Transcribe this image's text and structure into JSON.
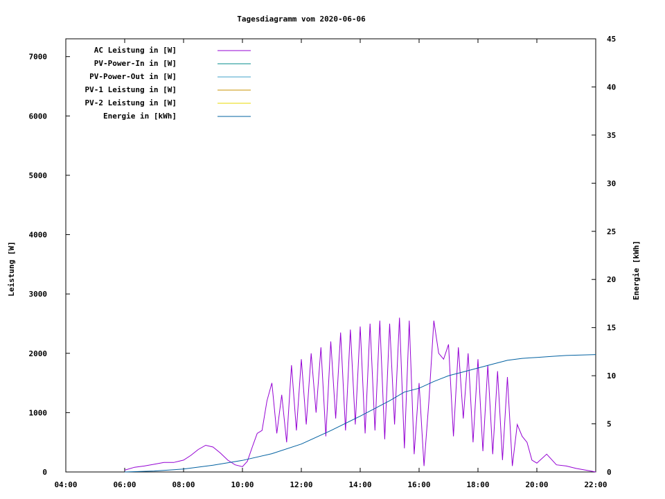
{
  "chart_data": {
    "type": "line",
    "title": "Tagesdiagramm vom 2020-06-06",
    "ylabel": "Leistung [W]",
    "y2label": "Energie [kWh]",
    "xlim": [
      "04:00",
      "22:00"
    ],
    "ylim": [
      0,
      7300
    ],
    "y2lim": [
      0,
      45
    ],
    "x_ticks": [
      "04:00",
      "06:00",
      "08:00",
      "10:00",
      "12:00",
      "14:00",
      "16:00",
      "18:00",
      "20:00",
      "22:00"
    ],
    "y_ticks": [
      0,
      1000,
      2000,
      3000,
      4000,
      5000,
      6000,
      7000
    ],
    "y2_ticks": [
      0,
      5,
      10,
      15,
      20,
      25,
      30,
      35,
      40,
      45
    ],
    "legend_position": "top-left",
    "series": [
      {
        "name": "AC Leistung in [W]",
        "color": "#9400d3",
        "axis": "left",
        "x": [
          "06:00",
          "06:20",
          "06:40",
          "07:00",
          "07:20",
          "07:40",
          "08:00",
          "08:15",
          "08:30",
          "08:45",
          "09:00",
          "09:15",
          "09:30",
          "09:45",
          "10:00",
          "10:10",
          "10:20",
          "10:30",
          "10:40",
          "10:50",
          "11:00",
          "11:10",
          "11:20",
          "11:30",
          "11:40",
          "11:50",
          "12:00",
          "12:10",
          "12:20",
          "12:30",
          "12:40",
          "12:50",
          "13:00",
          "13:10",
          "13:20",
          "13:30",
          "13:40",
          "13:50",
          "14:00",
          "14:10",
          "14:20",
          "14:30",
          "14:40",
          "14:50",
          "15:00",
          "15:10",
          "15:20",
          "15:30",
          "15:40",
          "15:50",
          "16:00",
          "16:10",
          "16:20",
          "16:30",
          "16:40",
          "16:50",
          "17:00",
          "17:10",
          "17:20",
          "17:30",
          "17:40",
          "17:50",
          "18:00",
          "18:10",
          "18:20",
          "18:30",
          "18:40",
          "18:50",
          "19:00",
          "19:10",
          "19:20",
          "19:30",
          "19:40",
          "19:50",
          "20:00",
          "20:20",
          "20:40",
          "21:00",
          "21:20",
          "21:40",
          "22:00"
        ],
        "values": [
          30,
          80,
          100,
          130,
          160,
          160,
          200,
          280,
          380,
          450,
          420,
          320,
          200,
          120,
          90,
          180,
          420,
          650,
          700,
          1200,
          1500,
          650,
          1300,
          500,
          1800,
          700,
          1900,
          800,
          2000,
          1000,
          2100,
          600,
          2200,
          900,
          2350,
          700,
          2400,
          800,
          2450,
          650,
          2500,
          700,
          2550,
          550,
          2500,
          800,
          2600,
          400,
          2550,
          300,
          1500,
          100,
          1200,
          2550,
          2000,
          1900,
          2150,
          600,
          2100,
          900,
          2000,
          500,
          1900,
          350,
          1800,
          300,
          1700,
          200,
          1600,
          100,
          800,
          600,
          500,
          200,
          150,
          300,
          120,
          100,
          60,
          30,
          0
        ]
      },
      {
        "name": "PV-Power-In in [W]",
        "color": "#008b8b",
        "axis": "left",
        "x": [],
        "values": []
      },
      {
        "name": "PV-Power-Out in [W]",
        "color": "#3fa0c8",
        "axis": "left",
        "x": [],
        "values": []
      },
      {
        "name": "PV-1 Leistung in [W]",
        "color": "#c89000",
        "axis": "left",
        "x": [],
        "values": []
      },
      {
        "name": "PV-2 Leistung in [W]",
        "color": "#e8d800",
        "axis": "left",
        "x": [],
        "values": []
      },
      {
        "name": "Energie in [kWh]",
        "color": "#0060a0",
        "axis": "right",
        "x": [
          "06:00",
          "07:00",
          "08:00",
          "09:00",
          "10:00",
          "11:00",
          "12:00",
          "13:00",
          "14:00",
          "15:00",
          "15:30",
          "16:00",
          "16:30",
          "17:00",
          "17:30",
          "18:00",
          "18:30",
          "19:00",
          "19:30",
          "20:00",
          "20:30",
          "21:00",
          "22:00"
        ],
        "values": [
          0,
          0.1,
          0.3,
          0.7,
          1.2,
          1.9,
          2.9,
          4.3,
          5.8,
          7.4,
          8.3,
          8.7,
          9.4,
          10.0,
          10.4,
          10.8,
          11.2,
          11.6,
          11.8,
          11.9,
          12.0,
          12.1,
          12.2
        ]
      }
    ]
  }
}
